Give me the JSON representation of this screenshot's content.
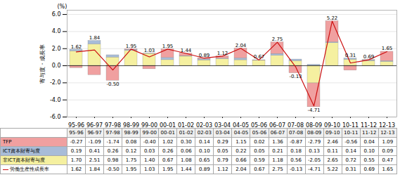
{
  "chart_data": {
    "type": "bar",
    "stacked": true,
    "categories": [
      "95-96",
      "96-97",
      "97-98",
      "98-99",
      "99-00",
      "00-01",
      "01-02",
      "02-03",
      "03-04",
      "04-05",
      "05-06",
      "06-07",
      "07-08",
      "08-09",
      "09-10",
      "10-11",
      "11-12",
      "12-13"
    ],
    "series": [
      {
        "name": "TFP",
        "color": "#f0a0a0",
        "values": [
          -0.27,
          -1.09,
          -1.74,
          0.08,
          -0.4,
          1.02,
          0.3,
          0.14,
          0.29,
          1.15,
          0.02,
          1.36,
          -0.87,
          -2.79,
          2.46,
          -0.56,
          0.04,
          1.09
        ],
        "value_labels": [
          "-0.27",
          "-1.09",
          "-1.74",
          "0.08",
          "-0.40",
          "1.02",
          "0.30",
          "0.14",
          "0.29",
          "1.15",
          "0.02",
          "1.36",
          "-0.87",
          "-2.79",
          "2.46",
          "-0.56",
          "0.04",
          "1.09"
        ]
      },
      {
        "name": "ICT資本財寄与度",
        "color": "#a8bcd8",
        "values": [
          0.19,
          0.41,
          0.26,
          0.12,
          0.03,
          0.26,
          0.06,
          0.1,
          0.05,
          0.22,
          0.05,
          0.21,
          0.18,
          0.13,
          0.11,
          0.14,
          0.1,
          0.09
        ],
        "value_labels": [
          "0.19",
          "0.41",
          "0.26",
          "0.12",
          "0.03",
          "0.26",
          "0.06",
          "0.10",
          "0.05",
          "0.22",
          "0.05",
          "0.21",
          "0.18",
          "0.13",
          "0.11",
          "0.14",
          "0.10",
          "0.09"
        ]
      },
      {
        "name": "非ICT資本財寄与度",
        "color": "#f5f0a0",
        "values": [
          1.7,
          2.51,
          0.98,
          1.75,
          1.4,
          0.67,
          1.08,
          0.65,
          0.79,
          0.66,
          0.59,
          1.18,
          0.56,
          -2.05,
          2.65,
          0.72,
          0.55,
          0.47
        ],
        "value_labels": [
          "1.70",
          "2.51",
          "0.98",
          "1.75",
          "1.40",
          "0.67",
          "1.08",
          "0.65",
          "0.79",
          "0.66",
          "0.59",
          "1.18",
          "0.56",
          "-2.05",
          "2.65",
          "0.72",
          "0.55",
          "0.47"
        ]
      },
      {
        "name": "労働生産性成長率",
        "type": "line",
        "color": "#cc1111",
        "data_labels": true,
        "values": [
          1.62,
          1.84,
          -0.5,
          1.95,
          1.03,
          1.95,
          1.44,
          0.89,
          1.12,
          2.04,
          0.67,
          2.75,
          -0.13,
          -4.71,
          5.22,
          0.31,
          0.69,
          1.65
        ],
        "value_labels": [
          "1.62",
          "1.84",
          "-0.50",
          "1.95",
          "1.03",
          "1.95",
          "1.44",
          "0.89",
          "1.12",
          "2.04",
          "0.67",
          "2.75",
          "-0.13",
          "-4.71",
          "5.22",
          "0.31",
          "0.69",
          "1.65"
        ]
      }
    ],
    "ylabel": "寄与度・成長率",
    "annotations": [
      "(%)"
    ],
    "ylim": [
      -6.0,
      6.5
    ],
    "yticks": [
      {
        "value": -6.0,
        "label": "-6.0"
      },
      {
        "value": -4.0,
        "label": "-4.0"
      },
      {
        "value": -2.0,
        "label": "-2.0"
      },
      {
        "value": 0.0,
        "label": "0.0"
      },
      {
        "value": 2.0,
        "label": "2.0"
      },
      {
        "value": 4.0,
        "label": "4.0"
      },
      {
        "value": 6.0,
        "label": "6.0"
      }
    ],
    "grid": true
  }
}
